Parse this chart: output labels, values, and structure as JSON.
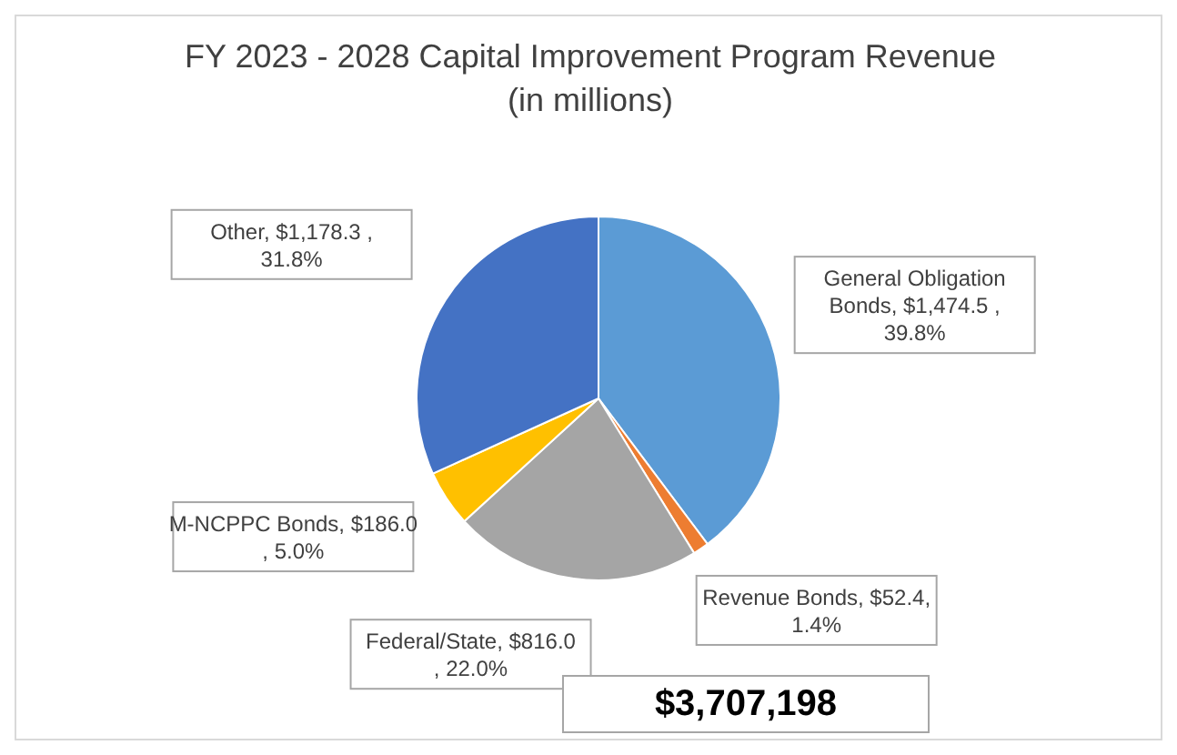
{
  "chart_data": {
    "type": "pie",
    "title": "FY 2023 - 2028 Capital Improvement Program Revenue",
    "subtitle": "(in millions)",
    "categories": [
      "General Obligation Bonds",
      "Revenue Bonds",
      "Federal/State",
      "M-NCPPC Bonds",
      "Other"
    ],
    "values": [
      1474.5,
      52.4,
      816.0,
      186.0,
      1178.3
    ],
    "colors": [
      "#5b9bd5",
      "#ed7d31",
      "#a5a5a5",
      "#ffc000",
      "#4472c4"
    ],
    "value_labels": [
      ", $1,474.5 , 39.8%",
      ", $52.4, 1.4%",
      ", $816.0 , 22.0%",
      ", $186.0 , 5.0%",
      ", $1,178.3 , 31.8%"
    ],
    "annotations": [
      "$3,707,198"
    ],
    "legend": false
  }
}
